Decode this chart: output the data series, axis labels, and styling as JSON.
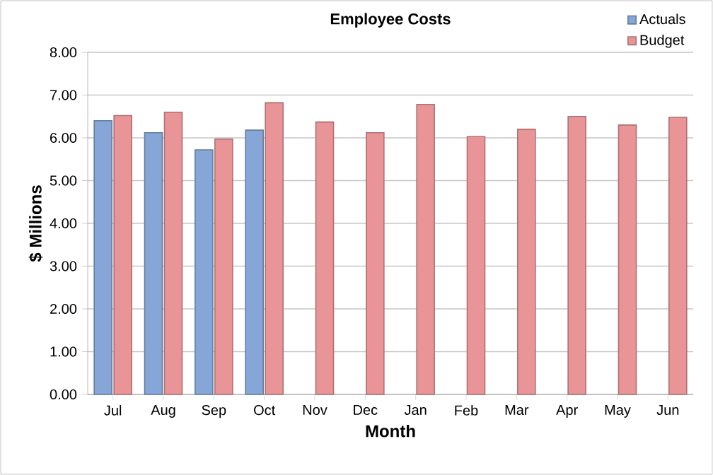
{
  "chart_data": {
    "type": "bar",
    "title": "Employee Costs",
    "xlabel": "Month",
    "ylabel": "$ Millions",
    "categories": [
      "Jul",
      "Aug",
      "Sep",
      "Oct",
      "Nov",
      "Dec",
      "Jan",
      "Feb",
      "Mar",
      "Apr",
      "May",
      "Jun"
    ],
    "series": [
      {
        "name": "Actuals",
        "color": "#85a6d6",
        "values": [
          6.4,
          6.12,
          5.72,
          6.18,
          null,
          null,
          null,
          null,
          null,
          null,
          null,
          null
        ]
      },
      {
        "name": "Budget",
        "color": "#e99598",
        "values": [
          6.52,
          6.6,
          5.97,
          6.82,
          6.37,
          6.12,
          6.78,
          6.03,
          6.2,
          6.5,
          6.3,
          6.48
        ]
      }
    ],
    "ylim": [
      0,
      8
    ],
    "yticks": [
      {
        "value": 0,
        "label": "0.00"
      },
      {
        "value": 1,
        "label": "1.00"
      },
      {
        "value": 2,
        "label": "2.00"
      },
      {
        "value": 3,
        "label": "3.00"
      },
      {
        "value": 4,
        "label": "4.00"
      },
      {
        "value": 5,
        "label": "5.00"
      },
      {
        "value": 6,
        "label": "6.00"
      },
      {
        "value": 7,
        "label": "7.00"
      },
      {
        "value": 8,
        "label": "8.00"
      }
    ],
    "grid": "y",
    "legend": "top right"
  }
}
